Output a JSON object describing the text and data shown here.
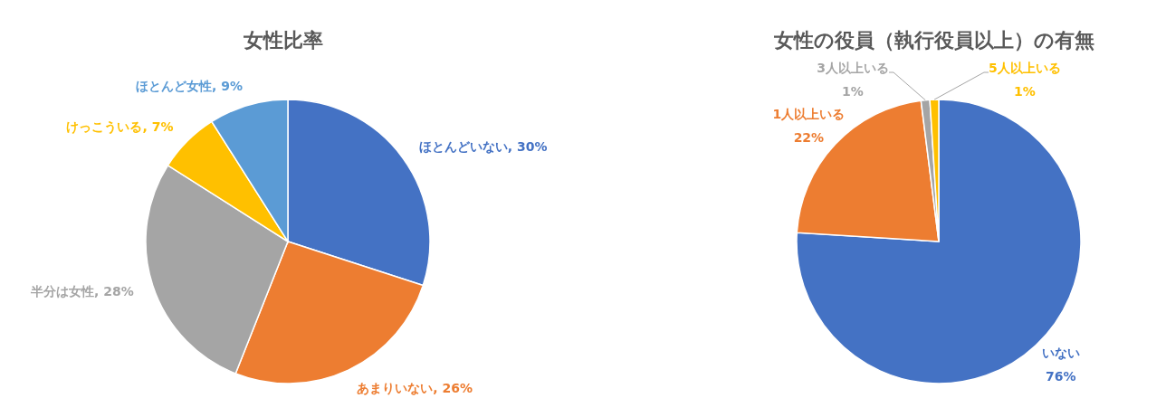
{
  "chart_data": [
    {
      "type": "pie",
      "title": "女性比率",
      "categories": [
        "ほとんどいない",
        "あまりいない",
        "半分は女性",
        "けっこういる",
        "ほとんど女性"
      ],
      "values": [
        30,
        26,
        28,
        7,
        9
      ],
      "value_labels": [
        "30%",
        "26%",
        "28%",
        "7%",
        "9%"
      ],
      "colors": [
        "#4472c4",
        "#ed7d31",
        "#a5a5a5",
        "#ffc000",
        "#5b9bd5"
      ]
    },
    {
      "type": "pie",
      "title": "女性の役員（執行役員以上）の有無",
      "categories": [
        "いない",
        "1人以上いる",
        "3人以上いる",
        "5人以上いる"
      ],
      "values": [
        76,
        22,
        1,
        1
      ],
      "value_labels": [
        "76%",
        "22%",
        "1%",
        "1%"
      ],
      "colors": [
        "#4472c4",
        "#ed7d31",
        "#a5a5a5",
        "#ffc000"
      ]
    }
  ]
}
